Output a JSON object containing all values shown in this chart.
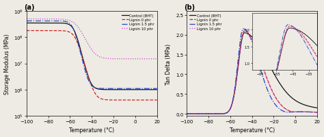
{
  "title_a": "(a)",
  "title_b": "(b)",
  "xlabel": "Temperature (°C)",
  "ylabel_a": "Storage Modulus (MPa)",
  "ylabel_b": "Tan Delta (MPa)",
  "xlim": [
    -100,
    20
  ],
  "ylim_a": [
    100000.0,
    1000000000.0
  ],
  "ylim_b": [
    -0.05,
    2.6
  ],
  "legend_labels": [
    "Control (BHT)",
    "Lignin 0 phr",
    "Lignin 1.5 phr",
    "Lignin 10 phr"
  ],
  "colors": [
    "#111111",
    "#cc2222",
    "#2244cc",
    "#cc44cc"
  ],
  "linestyles": [
    "-",
    "--",
    "-.",
    ":"
  ],
  "xticks": [
    -100,
    -80,
    -60,
    -40,
    -20,
    0,
    20
  ],
  "background_color": "#eeebe4"
}
